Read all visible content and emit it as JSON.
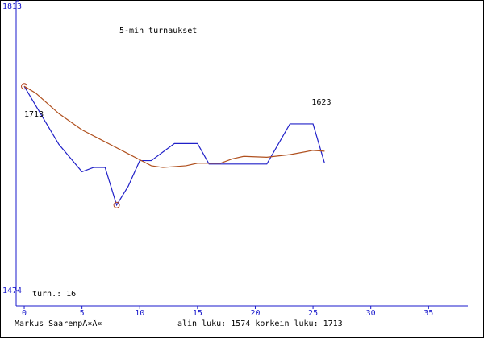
{
  "chart_data": {
    "type": "line",
    "title": "5-min turnaukset",
    "xlim": [
      -0.7,
      38.4
    ],
    "xticks": [
      0,
      5,
      10,
      15,
      20,
      25,
      30,
      35
    ],
    "ylim": [
      1474,
      1813
    ],
    "yticks": [
      1474,
      1813
    ],
    "series": [
      {
        "color": "#2020c8",
        "x": [
          0,
          3,
          5,
          6,
          7,
          8,
          9,
          10,
          11,
          13,
          15,
          16,
          21,
          23,
          25,
          26
        ],
        "values": [
          1713,
          1645,
          1613,
          1618,
          1618,
          1574,
          1596,
          1626,
          1626,
          1646,
          1646,
          1622,
          1622,
          1669,
          1669,
          1623
        ]
      },
      {
        "color": "#b0501e",
        "x": [
          0,
          1,
          3,
          5,
          7,
          9,
          10,
          11,
          12,
          14,
          15,
          17,
          18,
          19,
          21,
          23,
          25,
          26
        ],
        "values": [
          1713,
          1705,
          1681,
          1662,
          1648,
          1634,
          1627,
          1620,
          1618,
          1620,
          1623,
          1623,
          1628,
          1631,
          1630,
          1633,
          1638,
          1637
        ]
      }
    ],
    "max_point": {
      "x": 0,
      "value": 1713
    },
    "min_point": {
      "x": 8,
      "value": 1574
    },
    "count_label": "turn.: 16",
    "footer": {
      "author": "Markus SaarenpÃ¤Ã¤",
      "stats": "alin luku: 1574  korkein luku: 1713"
    }
  }
}
